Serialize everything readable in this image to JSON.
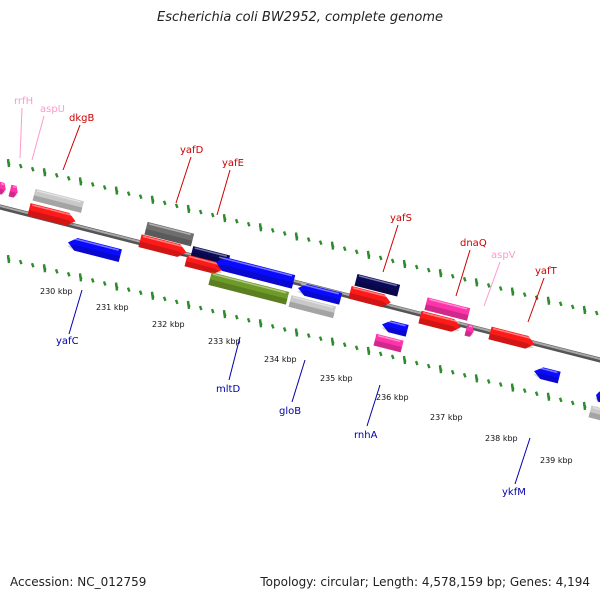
{
  "title": "Escherichia coli BW2952, complete genome",
  "accession_text": "Accession: NC_012759",
  "topology_text": "Topology: circular; Length: 4,578,159 bp; Genes: 4,194",
  "colors": {
    "red_gene": "#ff1a1a",
    "blue_gene": "#0a0aff",
    "pink_gene": "#ff33aa",
    "gray_gene": "#c8c8c8",
    "darkgray_gene": "#6e6e6e",
    "navy_gene": "#0a0a5a",
    "olive_gene": "#6e9a28",
    "label_red": "#cc0000",
    "label_blue": "#0000aa",
    "label_pink": "#ff99cc",
    "tick_green": "#2e8b2e",
    "backbone": "#888888"
  },
  "kbp_labels": [
    "230 kbp",
    "231 kbp",
    "232 kbp",
    "233 kbp",
    "234 kbp",
    "235 kbp",
    "236 kbp",
    "237 kbp",
    "238 kbp",
    "239 kbp"
  ],
  "gene_labels": [
    "rrfH",
    "aspU",
    "dkgB",
    "yafD",
    "yafE",
    "yafS",
    "dnaQ",
    "aspV",
    "yafT",
    "yafC",
    "mltD",
    "gloB",
    "rnhA",
    "ykfM"
  ]
}
